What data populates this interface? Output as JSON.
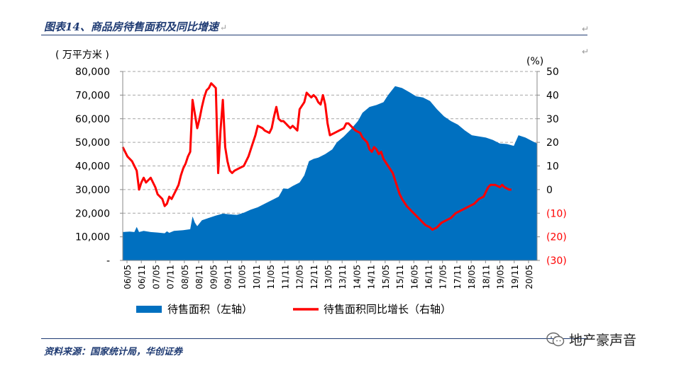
{
  "header": {
    "title": "图表14、商品房待售面积及同比增速",
    "para_mark": "↵"
  },
  "footer": {
    "source": "资料来源：国家统计局，华创证券"
  },
  "watermark": {
    "text": "地产豪声音",
    "logo": "wechat-icon"
  },
  "colors": {
    "area": "#0070c0",
    "line": "#ff0000",
    "axis_text": "#000000",
    "neg_text": "#ff0000",
    "grid": "#a6a6a6"
  },
  "chart_data": {
    "type": "area+line",
    "left_unit": "( 万平方米 )",
    "right_unit": "(%)",
    "left_ylim": [
      0,
      80000
    ],
    "right_ylim": [
      -30,
      50
    ],
    "left_ticks": [
      "80,000",
      "70,000",
      "60,000",
      "50,000",
      "40,000",
      "30,000",
      "20,000",
      "10,000",
      "-"
    ],
    "right_ticks": [
      "50",
      "40",
      "30",
      "20",
      "10",
      "0",
      "(10)",
      "(20)",
      "(30)"
    ],
    "x_ticks": [
      "06/05",
      "06/11",
      "07/05",
      "07/11",
      "08/05",
      "08/11",
      "09/05",
      "09/11",
      "10/05",
      "10/11",
      "11/05",
      "11/11",
      "12/05",
      "12/11",
      "13/05",
      "13/11",
      "14/05",
      "14/11",
      "15/05",
      "15/11",
      "16/05",
      "16/11",
      "17/05",
      "17/11",
      "18/05",
      "18/11",
      "19/05",
      "19/11",
      "20/05"
    ],
    "x_range": [
      0,
      178
    ],
    "grid": "horizontal-dashed",
    "legend_position": "bottom",
    "series": [
      {
        "name": "待售面积（左轴）",
        "type": "area",
        "axis": "left",
        "points": [
          [
            0,
            12000
          ],
          [
            3,
            12200
          ],
          [
            5,
            12000
          ],
          [
            6,
            14200
          ],
          [
            7,
            12000
          ],
          [
            9,
            12500
          ],
          [
            12,
            12000
          ],
          [
            15,
            11800
          ],
          [
            18,
            11500
          ],
          [
            19,
            12300
          ],
          [
            20,
            11700
          ],
          [
            22,
            12500
          ],
          [
            26,
            12800
          ],
          [
            29,
            13200
          ],
          [
            30,
            18600
          ],
          [
            31,
            16000
          ],
          [
            32,
            14500
          ],
          [
            34,
            17000
          ],
          [
            37,
            18000
          ],
          [
            40,
            19000
          ],
          [
            43,
            19800
          ],
          [
            46,
            19500
          ],
          [
            49,
            19300
          ],
          [
            52,
            20200
          ],
          [
            55,
            21500
          ],
          [
            58,
            22500
          ],
          [
            61,
            24000
          ],
          [
            64,
            25500
          ],
          [
            67,
            27000
          ],
          [
            69,
            30500
          ],
          [
            71,
            30300
          ],
          [
            73,
            31500
          ],
          [
            76,
            33000
          ],
          [
            78,
            36000
          ],
          [
            80,
            42000
          ],
          [
            82,
            43000
          ],
          [
            84,
            43500
          ],
          [
            87,
            45000
          ],
          [
            90,
            47000
          ],
          [
            92,
            50000
          ],
          [
            95,
            52500
          ],
          [
            98,
            55500
          ],
          [
            101,
            59000
          ],
          [
            103,
            62500
          ],
          [
            106,
            65000
          ],
          [
            109,
            65800
          ],
          [
            112,
            67000
          ],
          [
            114,
            70000
          ],
          [
            117,
            73800
          ],
          [
            120,
            73000
          ],
          [
            123,
            71300
          ],
          [
            126,
            69500
          ],
          [
            129,
            69000
          ],
          [
            132,
            67500
          ],
          [
            135,
            64000
          ],
          [
            138,
            61000
          ],
          [
            141,
            59000
          ],
          [
            144,
            57500
          ],
          [
            147,
            55000
          ],
          [
            150,
            53000
          ],
          [
            153,
            52500
          ],
          [
            156,
            52000
          ],
          [
            159,
            51000
          ],
          [
            162,
            49500
          ],
          [
            165,
            49300
          ],
          [
            168,
            48500
          ],
          [
            170,
            53000
          ],
          [
            173,
            52000
          ],
          [
            176,
            50500
          ],
          [
            178,
            49500
          ]
        ]
      },
      {
        "name": "待售面积同比增长（右轴）",
        "type": "line",
        "axis": "right",
        "points": [
          [
            0,
            18
          ],
          [
            2,
            14
          ],
          [
            4,
            12
          ],
          [
            6,
            8
          ],
          [
            7,
            0
          ],
          [
            8,
            3
          ],
          [
            9,
            5
          ],
          [
            10,
            3
          ],
          [
            11,
            4
          ],
          [
            12,
            5
          ],
          [
            14,
            1
          ],
          [
            15,
            -2
          ],
          [
            17,
            -4
          ],
          [
            18,
            -7
          ],
          [
            19,
            -6
          ],
          [
            20,
            -3
          ],
          [
            21,
            -4
          ],
          [
            22,
            -2
          ],
          [
            23,
            0
          ],
          [
            24,
            2
          ],
          [
            25,
            6
          ],
          [
            26,
            9
          ],
          [
            27,
            11
          ],
          [
            28,
            14
          ],
          [
            29,
            16
          ],
          [
            30,
            38
          ],
          [
            31,
            32
          ],
          [
            32,
            26
          ],
          [
            33,
            30
          ],
          [
            34,
            35
          ],
          [
            35,
            39
          ],
          [
            36,
            42
          ],
          [
            37,
            43
          ],
          [
            38,
            45
          ],
          [
            39,
            44
          ],
          [
            40,
            43
          ],
          [
            41,
            7
          ],
          [
            42,
            25
          ],
          [
            43,
            38
          ],
          [
            44,
            18
          ],
          [
            45,
            12
          ],
          [
            46,
            8
          ],
          [
            47,
            7
          ],
          [
            48,
            8
          ],
          [
            50,
            9
          ],
          [
            52,
            10
          ],
          [
            53,
            12
          ],
          [
            54,
            14
          ],
          [
            56,
            20
          ],
          [
            57,
            23
          ],
          [
            58,
            27
          ],
          [
            60,
            26
          ],
          [
            61,
            25
          ],
          [
            63,
            24
          ],
          [
            64,
            26
          ],
          [
            65,
            31
          ],
          [
            66,
            35
          ],
          [
            67,
            30
          ],
          [
            68,
            29
          ],
          [
            69,
            29
          ],
          [
            70,
            28
          ],
          [
            71,
            27
          ],
          [
            72,
            26
          ],
          [
            73,
            27
          ],
          [
            74,
            26
          ],
          [
            75,
            25
          ],
          [
            76,
            34
          ],
          [
            78,
            37
          ],
          [
            79,
            41
          ],
          [
            80,
            40
          ],
          [
            81,
            39
          ],
          [
            82,
            40
          ],
          [
            83,
            39
          ],
          [
            84,
            37
          ],
          [
            85,
            36
          ],
          [
            86,
            40
          ],
          [
            87,
            36
          ],
          [
            88,
            28
          ],
          [
            89,
            23
          ],
          [
            91,
            24
          ],
          [
            93,
            25
          ],
          [
            95,
            26
          ],
          [
            96,
            28
          ],
          [
            97,
            28
          ],
          [
            98,
            27
          ],
          [
            100,
            25
          ],
          [
            102,
            24
          ],
          [
            103,
            22
          ],
          [
            105,
            20
          ],
          [
            106,
            17
          ],
          [
            107,
            16
          ],
          [
            108,
            18
          ],
          [
            109,
            17
          ],
          [
            110,
            15
          ],
          [
            111,
            16
          ],
          [
            112,
            13
          ],
          [
            114,
            10
          ],
          [
            116,
            7
          ],
          [
            118,
            1
          ],
          [
            119,
            -2
          ],
          [
            120,
            -4
          ],
          [
            122,
            -7
          ],
          [
            124,
            -9
          ],
          [
            126,
            -11
          ],
          [
            128,
            -13
          ],
          [
            130,
            -15
          ],
          [
            132,
            -16
          ],
          [
            133,
            -17
          ],
          [
            135,
            -16
          ],
          [
            137,
            -14
          ],
          [
            139,
            -13
          ],
          [
            141,
            -12
          ],
          [
            143,
            -10
          ],
          [
            145,
            -9
          ],
          [
            147,
            -8
          ],
          [
            149,
            -7
          ],
          [
            151,
            -6
          ],
          [
            153,
            -4
          ],
          [
            155,
            -3
          ],
          [
            157,
            1
          ],
          [
            158,
            2
          ],
          [
            160,
            2
          ],
          [
            162,
            1
          ],
          [
            163,
            2
          ],
          [
            164,
            1
          ],
          [
            166,
            0
          ],
          [
            167,
            0
          ]
        ]
      }
    ]
  }
}
